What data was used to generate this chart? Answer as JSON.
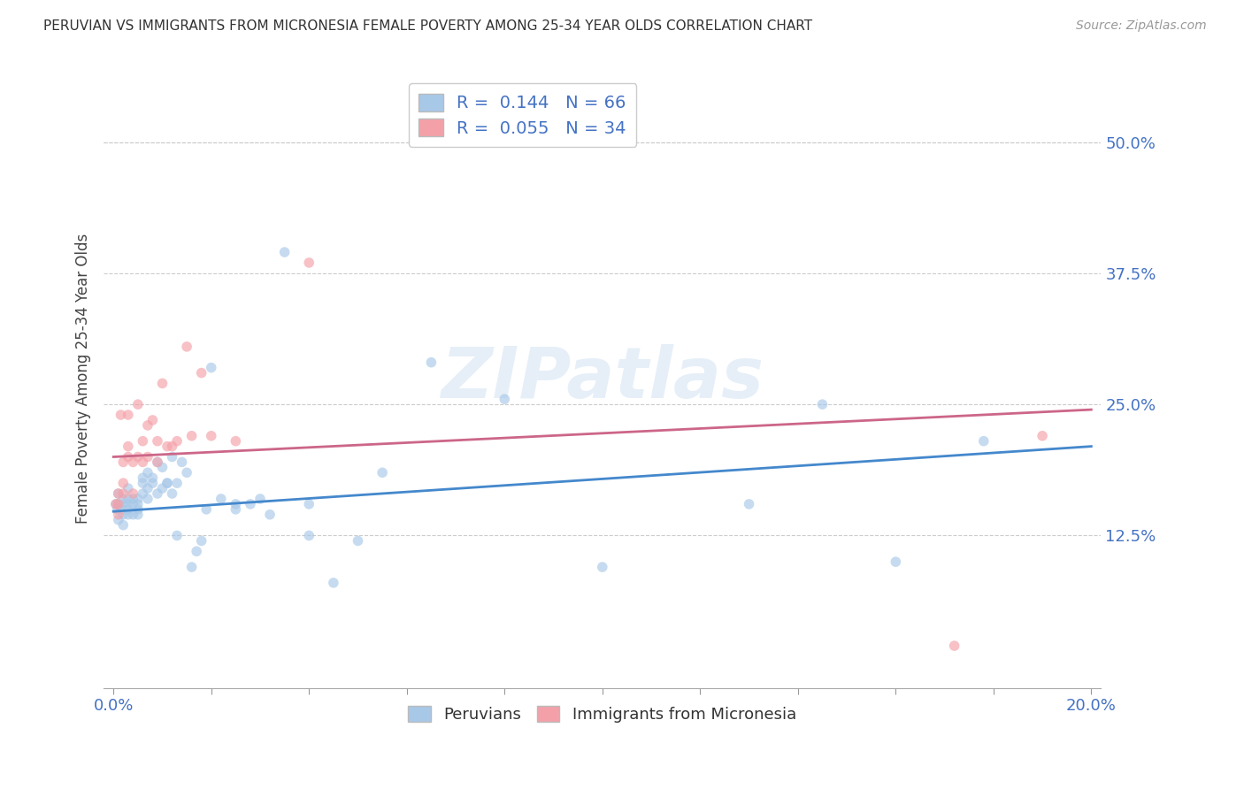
{
  "title": "PERUVIAN VS IMMIGRANTS FROM MICRONESIA FEMALE POVERTY AMONG 25-34 YEAR OLDS CORRELATION CHART",
  "source": "Source: ZipAtlas.com",
  "ylabel": "Female Poverty Among 25-34 Year Olds",
  "ytick_labels": [
    "50.0%",
    "37.5%",
    "25.0%",
    "12.5%"
  ],
  "ytick_values": [
    0.5,
    0.375,
    0.25,
    0.125
  ],
  "legend_label1": "Peruvians",
  "legend_label2": "Immigrants from Micronesia",
  "blue_color": "#a8c8e8",
  "pink_color": "#f4a0a8",
  "blue_line_color": "#4488cc",
  "pink_line_color": "#cc6688",
  "background_color": "#ffffff",
  "watermark": "ZIPatlas",
  "peruvian_x": [
    0.0005,
    0.0008,
    0.001,
    0.001,
    0.001,
    0.0015,
    0.002,
    0.002,
    0.002,
    0.002,
    0.003,
    0.003,
    0.003,
    0.003,
    0.003,
    0.004,
    0.004,
    0.004,
    0.005,
    0.005,
    0.005,
    0.005,
    0.006,
    0.006,
    0.006,
    0.007,
    0.007,
    0.007,
    0.008,
    0.008,
    0.009,
    0.009,
    0.01,
    0.01,
    0.011,
    0.011,
    0.012,
    0.012,
    0.013,
    0.013,
    0.014,
    0.015,
    0.016,
    0.017,
    0.018,
    0.019,
    0.02,
    0.022,
    0.025,
    0.025,
    0.028,
    0.03,
    0.032,
    0.035,
    0.04,
    0.04,
    0.045,
    0.05,
    0.055,
    0.065,
    0.08,
    0.1,
    0.13,
    0.145,
    0.16,
    0.178
  ],
  "peruvian_y": [
    0.155,
    0.15,
    0.165,
    0.155,
    0.14,
    0.15,
    0.16,
    0.155,
    0.145,
    0.135,
    0.17,
    0.155,
    0.145,
    0.16,
    0.15,
    0.155,
    0.16,
    0.145,
    0.16,
    0.15,
    0.155,
    0.145,
    0.175,
    0.18,
    0.165,
    0.185,
    0.17,
    0.16,
    0.18,
    0.175,
    0.195,
    0.165,
    0.17,
    0.19,
    0.175,
    0.175,
    0.165,
    0.2,
    0.175,
    0.125,
    0.195,
    0.185,
    0.095,
    0.11,
    0.12,
    0.15,
    0.285,
    0.16,
    0.155,
    0.15,
    0.155,
    0.16,
    0.145,
    0.395,
    0.125,
    0.155,
    0.08,
    0.12,
    0.185,
    0.29,
    0.255,
    0.095,
    0.155,
    0.25,
    0.1,
    0.215
  ],
  "micronesia_x": [
    0.0005,
    0.001,
    0.001,
    0.001,
    0.0015,
    0.002,
    0.002,
    0.002,
    0.003,
    0.003,
    0.003,
    0.004,
    0.004,
    0.005,
    0.005,
    0.006,
    0.006,
    0.007,
    0.007,
    0.008,
    0.009,
    0.009,
    0.01,
    0.011,
    0.012,
    0.013,
    0.015,
    0.016,
    0.018,
    0.02,
    0.025,
    0.04,
    0.172,
    0.19
  ],
  "micronesia_y": [
    0.155,
    0.165,
    0.155,
    0.145,
    0.24,
    0.175,
    0.195,
    0.165,
    0.21,
    0.24,
    0.2,
    0.195,
    0.165,
    0.25,
    0.2,
    0.215,
    0.195,
    0.23,
    0.2,
    0.235,
    0.195,
    0.215,
    0.27,
    0.21,
    0.21,
    0.215,
    0.305,
    0.22,
    0.28,
    0.22,
    0.215,
    0.385,
    0.02,
    0.22
  ],
  "peruvian_trend_x": [
    0.0,
    0.2
  ],
  "peruvian_trend_y": [
    0.148,
    0.21
  ],
  "micronesia_trend_x": [
    0.0,
    0.2
  ],
  "micronesia_trend_y": [
    0.2,
    0.245
  ],
  "xlim": [
    -0.002,
    0.202
  ],
  "ylim": [
    -0.02,
    0.57
  ],
  "scatter_size": 70,
  "scatter_alpha": 0.65
}
